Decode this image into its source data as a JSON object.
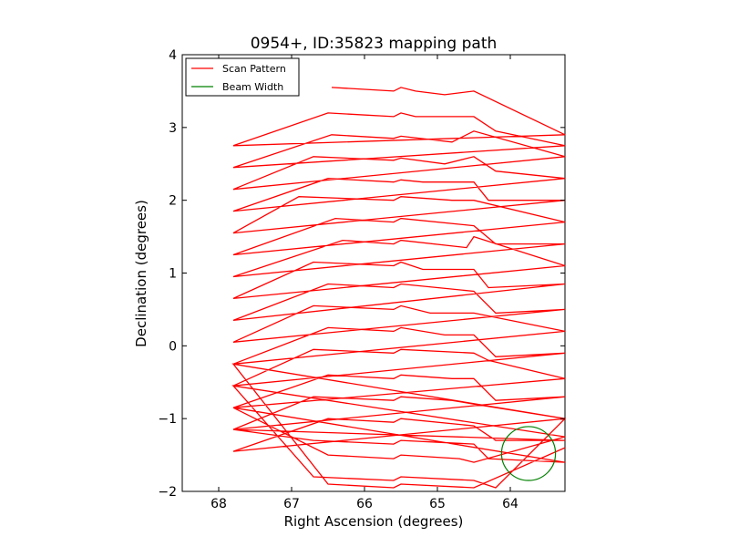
{
  "chart_data": {
    "type": "line",
    "title": "0954+, ID:35823 mapping path",
    "xlabel": "Right Ascension (degrees)",
    "ylabel": "Declination (degrees)",
    "xlim": [
      68.5,
      63.25
    ],
    "ylim": [
      -2,
      4
    ],
    "x_ticks": [
      68,
      67,
      66,
      65,
      64
    ],
    "y_ticks": [
      -2,
      -1,
      0,
      1,
      2,
      3,
      4
    ],
    "x_tick_labels": [
      "68",
      "67",
      "66",
      "65",
      "64"
    ],
    "y_tick_labels": [
      "−2",
      "−1",
      "0",
      "1",
      "2",
      "3",
      "4"
    ],
    "grid": false,
    "legend_position": "top-left",
    "series": [
      {
        "name": "Scan Pattern",
        "color": "#ff0000",
        "x": [
          66.45,
          65.6,
          65.5,
          65.3,
          64.9,
          64.5,
          63.25,
          67.8,
          66.5,
          65.6,
          65.5,
          65.3,
          64.5,
          64.2,
          63.25,
          67.8,
          66.45,
          65.6,
          65.5,
          64.8,
          64.5,
          63.25,
          67.8,
          66.7,
          65.6,
          65.5,
          64.9,
          64.5,
          64.2,
          63.25,
          67.8,
          66.5,
          65.6,
          65.5,
          65.2,
          64.5,
          64.3,
          63.25,
          67.8,
          66.9,
          65.6,
          65.5,
          64.8,
          64.5,
          63.25,
          67.8,
          66.4,
          65.6,
          65.5,
          64.5,
          64.2,
          63.25,
          67.8,
          66.3,
          65.6,
          65.5,
          64.6,
          64.5,
          63.25,
          67.8,
          66.7,
          65.6,
          65.5,
          65.2,
          64.5,
          64.3,
          63.25,
          67.8,
          66.5,
          65.6,
          65.5,
          64.5,
          64.2,
          63.25,
          67.8,
          66.7,
          65.6,
          65.5,
          65.1,
          64.5,
          63.25,
          67.8,
          66.5,
          65.6,
          65.5,
          64.9,
          64.5,
          64.2,
          63.25,
          67.8,
          66.7,
          65.6,
          65.5,
          64.5,
          64.3,
          63.25,
          67.8,
          66.5,
          65.6,
          65.5,
          64.8,
          64.5,
          64.2,
          63.25,
          67.8,
          66.7,
          65.6,
          65.5,
          64.8,
          64.5,
          63.25,
          67.8,
          66.5,
          65.6,
          65.5,
          64.5,
          64.2,
          63.25,
          67.8,
          66.7,
          65.6,
          65.5,
          64.5,
          64.3,
          63.25,
          67.8,
          66.5,
          65.6,
          65.5,
          64.7,
          64.5,
          63.25,
          67.8,
          66.7,
          65.6,
          65.5,
          64.5,
          64.2,
          63.25,
          67.8,
          66.5,
          65.6,
          65.5,
          64.5,
          63.25
        ],
        "y": [
          3.55,
          3.5,
          3.55,
          3.5,
          3.45,
          3.5,
          2.9,
          2.75,
          3.2,
          3.15,
          3.2,
          3.15,
          3.15,
          2.95,
          2.75,
          2.45,
          2.9,
          2.85,
          2.88,
          2.8,
          2.95,
          2.6,
          2.15,
          2.6,
          2.55,
          2.58,
          2.5,
          2.6,
          2.4,
          2.3,
          1.85,
          2.3,
          2.25,
          2.28,
          2.25,
          2.25,
          2.0,
          2.0,
          1.55,
          2.05,
          2.0,
          2.05,
          2.0,
          2.0,
          1.7,
          1.25,
          1.75,
          1.7,
          1.75,
          1.65,
          1.4,
          1.4,
          0.95,
          1.45,
          1.4,
          1.45,
          1.35,
          1.5,
          1.1,
          0.65,
          1.15,
          1.1,
          1.15,
          1.05,
          1.05,
          0.8,
          0.85,
          0.35,
          0.85,
          0.8,
          0.85,
          0.75,
          0.45,
          0.5,
          0.05,
          0.55,
          0.5,
          0.55,
          0.45,
          0.45,
          0.2,
          -0.25,
          0.25,
          0.2,
          0.25,
          0.15,
          0.15,
          -0.15,
          -0.1,
          -0.55,
          -0.05,
          -0.1,
          -0.05,
          -0.1,
          -0.2,
          -0.45,
          -0.85,
          -0.4,
          -0.45,
          -0.4,
          -0.45,
          -0.45,
          -0.75,
          -0.7,
          -1.15,
          -0.7,
          -0.75,
          -0.7,
          -0.75,
          -0.8,
          -1.0,
          -1.45,
          -1.0,
          -1.05,
          -1.0,
          -1.1,
          -1.3,
          -1.3,
          -1.15,
          -1.3,
          -1.35,
          -1.3,
          -1.35,
          -1.55,
          -1.6,
          -0.85,
          -1.5,
          -1.55,
          -1.5,
          -1.55,
          -1.6,
          -1.25,
          -0.55,
          -1.8,
          -1.85,
          -1.8,
          -1.85,
          -1.95,
          -1.0,
          -0.25,
          -1.9,
          -1.95,
          -1.9,
          -1.95,
          -1.4
        ]
      },
      {
        "name": "Beam Width",
        "color": "#008000",
        "center_x": 63.75,
        "center_y": -1.48,
        "radius_deg": 0.37,
        "type": "circle"
      }
    ]
  }
}
